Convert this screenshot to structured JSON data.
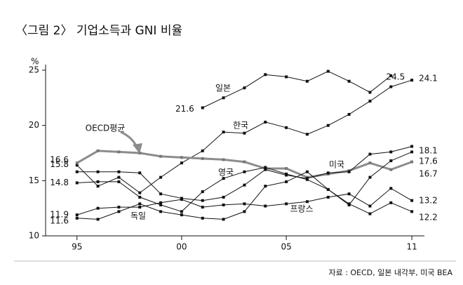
{
  "chart_data": {
    "type": "line",
    "title": "〈그림 2〉 기업소득과 GNI 비율",
    "y_label": "%",
    "source": "자료 : OECD, 일본 내각부, 미국 BEA",
    "x": [
      1995,
      1996,
      1997,
      1998,
      1999,
      2000,
      2001,
      2002,
      2003,
      2004,
      2005,
      2006,
      2007,
      2008,
      2009,
      2010,
      2011
    ],
    "xlim": [
      1993.5,
      2011.6
    ],
    "xticks": [
      {
        "value": 1995,
        "label": "95"
      },
      {
        "value": 2000,
        "label": "00"
      },
      {
        "value": 2005,
        "label": "05"
      },
      {
        "value": 2011,
        "label": "11"
      }
    ],
    "ylim": [
      10,
      25
    ],
    "yticks": [
      10,
      15,
      20,
      25
    ],
    "series": [
      {
        "name": "일본",
        "color": "#111111",
        "values": [
          null,
          null,
          null,
          null,
          null,
          null,
          21.6,
          22.5,
          23.4,
          24.6,
          24.4,
          24.0,
          24.9,
          24.0,
          23.0,
          24.5,
          null
        ]
      },
      {
        "name": "한국",
        "color": "#111111",
        "values": [
          16.4,
          14.5,
          15.3,
          13.9,
          15.3,
          16.6,
          17.7,
          19.4,
          19.3,
          20.3,
          19.8,
          19.2,
          20.0,
          21.0,
          22.2,
          23.5,
          24.1
        ]
      },
      {
        "name": "OECD평균",
        "color": "#8c8c8c",
        "values": [
          16.6,
          17.7,
          17.6,
          17.5,
          17.2,
          17.1,
          17.0,
          16.9,
          16.7,
          16.1,
          16.1,
          15.3,
          15.6,
          15.9,
          16.6,
          16.0,
          16.7
        ]
      },
      {
        "name": "미국",
        "color": "#111111",
        "values": [
          15.8,
          15.8,
          15.8,
          15.7,
          13.8,
          13.4,
          13.2,
          13.5,
          14.6,
          16.0,
          15.5,
          15.2,
          15.7,
          15.8,
          17.4,
          17.6,
          18.1
        ]
      },
      {
        "name": "영국",
        "color": "#111111",
        "values": [
          14.8,
          14.9,
          14.9,
          13.5,
          12.8,
          12.2,
          14.0,
          15.2,
          15.8,
          16.2,
          15.6,
          15.1,
          14.2,
          12.8,
          15.3,
          16.8,
          17.6
        ]
      },
      {
        "name": "프랑스",
        "color": "#111111",
        "values": [
          11.9,
          12.5,
          12.6,
          12.6,
          13.0,
          13.3,
          12.6,
          12.8,
          12.9,
          12.7,
          12.9,
          13.1,
          13.5,
          13.8,
          12.7,
          14.3,
          13.2
        ]
      },
      {
        "name": "독일",
        "color": "#111111",
        "values": [
          11.6,
          11.5,
          12.2,
          12.9,
          12.2,
          11.9,
          11.6,
          11.5,
          12.2,
          14.5,
          14.9,
          15.8,
          14.2,
          12.9,
          12.0,
          13.0,
          12.2
        ]
      }
    ]
  }
}
